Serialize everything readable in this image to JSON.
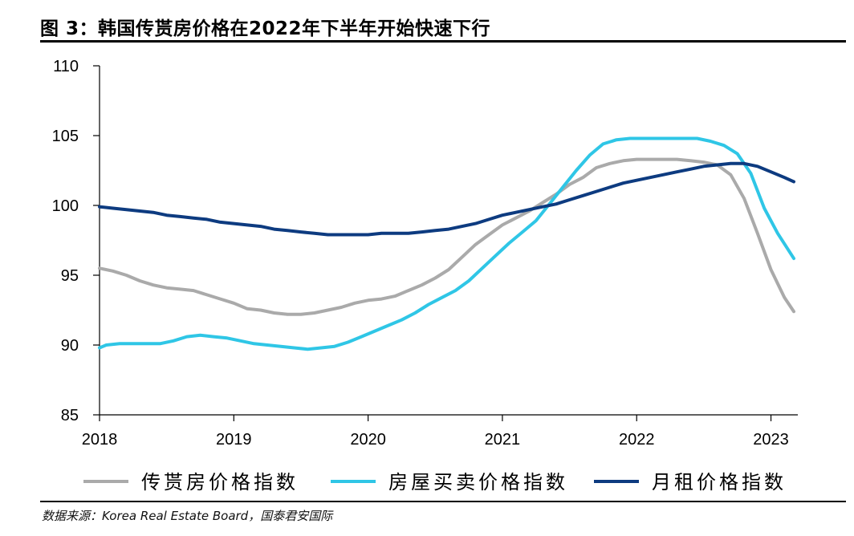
{
  "title": "图 3：韩国传贳房价格在2022年下半年开始快速下行",
  "source": "数据来源：Korea Real Estate Board，国泰君安国际",
  "colors": {
    "jeonse": "#aaaaaa",
    "sale": "#2fc6e6",
    "rent": "#0d3b80",
    "axis": "#000000"
  },
  "chart_data": {
    "type": "line",
    "ylim": [
      85,
      110
    ],
    "yticks": [
      "85",
      "90",
      "95",
      "100",
      "105",
      "110"
    ],
    "xlim": [
      2018.0,
      2023.2
    ],
    "xticks": [
      "2018",
      "2019",
      "2020",
      "2021",
      "2022",
      "2023"
    ],
    "legend_position": "bottom",
    "series": [
      {
        "name": "传贳房价格指数",
        "key": "jeonse",
        "x": [
          2018.0,
          2018.1,
          2018.2,
          2018.3,
          2018.4,
          2018.5,
          2018.6,
          2018.7,
          2018.8,
          2018.9,
          2019.0,
          2019.1,
          2019.2,
          2019.3,
          2019.4,
          2019.5,
          2019.6,
          2019.7,
          2019.8,
          2019.9,
          2020.0,
          2020.1,
          2020.2,
          2020.3,
          2020.4,
          2020.5,
          2020.6,
          2020.7,
          2020.8,
          2020.9,
          2021.0,
          2021.1,
          2021.2,
          2021.3,
          2021.4,
          2021.5,
          2021.6,
          2021.7,
          2021.8,
          2021.9,
          2022.0,
          2022.1,
          2022.2,
          2022.3,
          2022.4,
          2022.5,
          2022.6,
          2022.7,
          2022.8,
          2022.9,
          2023.0,
          2023.1,
          2023.17
        ],
        "values": [
          95.5,
          95.3,
          95.0,
          94.6,
          94.3,
          94.1,
          94.0,
          93.9,
          93.6,
          93.3,
          93.0,
          92.6,
          92.5,
          92.3,
          92.2,
          92.2,
          92.3,
          92.5,
          92.7,
          93.0,
          93.2,
          93.3,
          93.5,
          93.9,
          94.3,
          94.8,
          95.4,
          96.3,
          97.2,
          97.9,
          98.6,
          99.1,
          99.6,
          100.2,
          100.8,
          101.5,
          102.0,
          102.7,
          103.0,
          103.2,
          103.3,
          103.3,
          103.3,
          103.3,
          103.2,
          103.1,
          102.9,
          102.2,
          100.5,
          98.0,
          95.4,
          93.4,
          92.4
        ]
      },
      {
        "name": "房屋买卖价格指数",
        "key": "sale",
        "x": [
          2018.0,
          2018.05,
          2018.15,
          2018.25,
          2018.35,
          2018.45,
          2018.55,
          2018.65,
          2018.75,
          2018.85,
          2018.95,
          2019.05,
          2019.15,
          2019.25,
          2019.35,
          2019.45,
          2019.55,
          2019.65,
          2019.75,
          2019.85,
          2019.95,
          2020.05,
          2020.15,
          2020.25,
          2020.35,
          2020.45,
          2020.55,
          2020.65,
          2020.75,
          2020.85,
          2020.95,
          2021.05,
          2021.15,
          2021.25,
          2021.35,
          2021.45,
          2021.55,
          2021.65,
          2021.75,
          2021.85,
          2021.95,
          2022.05,
          2022.15,
          2022.25,
          2022.35,
          2022.45,
          2022.55,
          2022.65,
          2022.75,
          2022.85,
          2022.95,
          2023.05,
          2023.17
        ],
        "values": [
          89.8,
          90.0,
          90.1,
          90.1,
          90.1,
          90.1,
          90.3,
          90.6,
          90.7,
          90.6,
          90.5,
          90.3,
          90.1,
          90.0,
          89.9,
          89.8,
          89.7,
          89.8,
          89.9,
          90.2,
          90.6,
          91.0,
          91.4,
          91.8,
          92.3,
          92.9,
          93.4,
          93.9,
          94.6,
          95.5,
          96.4,
          97.3,
          98.1,
          98.9,
          100.1,
          101.3,
          102.5,
          103.6,
          104.4,
          104.7,
          104.8,
          104.8,
          104.8,
          104.8,
          104.8,
          104.8,
          104.6,
          104.3,
          103.7,
          102.3,
          99.8,
          98.0,
          96.2
        ]
      },
      {
        "name": "月租价格指数",
        "key": "rent",
        "x": [
          2018.0,
          2018.1,
          2018.2,
          2018.3,
          2018.4,
          2018.5,
          2018.6,
          2018.7,
          2018.8,
          2018.9,
          2019.0,
          2019.1,
          2019.2,
          2019.3,
          2019.4,
          2019.5,
          2019.6,
          2019.7,
          2019.8,
          2019.9,
          2020.0,
          2020.1,
          2020.2,
          2020.3,
          2020.4,
          2020.5,
          2020.6,
          2020.7,
          2020.8,
          2020.9,
          2021.0,
          2021.1,
          2021.2,
          2021.3,
          2021.4,
          2021.5,
          2021.6,
          2021.7,
          2021.8,
          2021.9,
          2022.0,
          2022.1,
          2022.2,
          2022.3,
          2022.4,
          2022.5,
          2022.6,
          2022.7,
          2022.8,
          2022.9,
          2023.0,
          2023.1,
          2023.17
        ],
        "values": [
          99.9,
          99.8,
          99.7,
          99.6,
          99.5,
          99.3,
          99.2,
          99.1,
          99.0,
          98.8,
          98.7,
          98.6,
          98.5,
          98.3,
          98.2,
          98.1,
          98.0,
          97.9,
          97.9,
          97.9,
          97.9,
          98.0,
          98.0,
          98.0,
          98.1,
          98.2,
          98.3,
          98.5,
          98.7,
          99.0,
          99.3,
          99.5,
          99.7,
          99.9,
          100.1,
          100.4,
          100.7,
          101.0,
          101.3,
          101.6,
          101.8,
          102.0,
          102.2,
          102.4,
          102.6,
          102.8,
          102.9,
          103.0,
          103.0,
          102.8,
          102.4,
          102.0,
          101.7
        ]
      }
    ]
  }
}
